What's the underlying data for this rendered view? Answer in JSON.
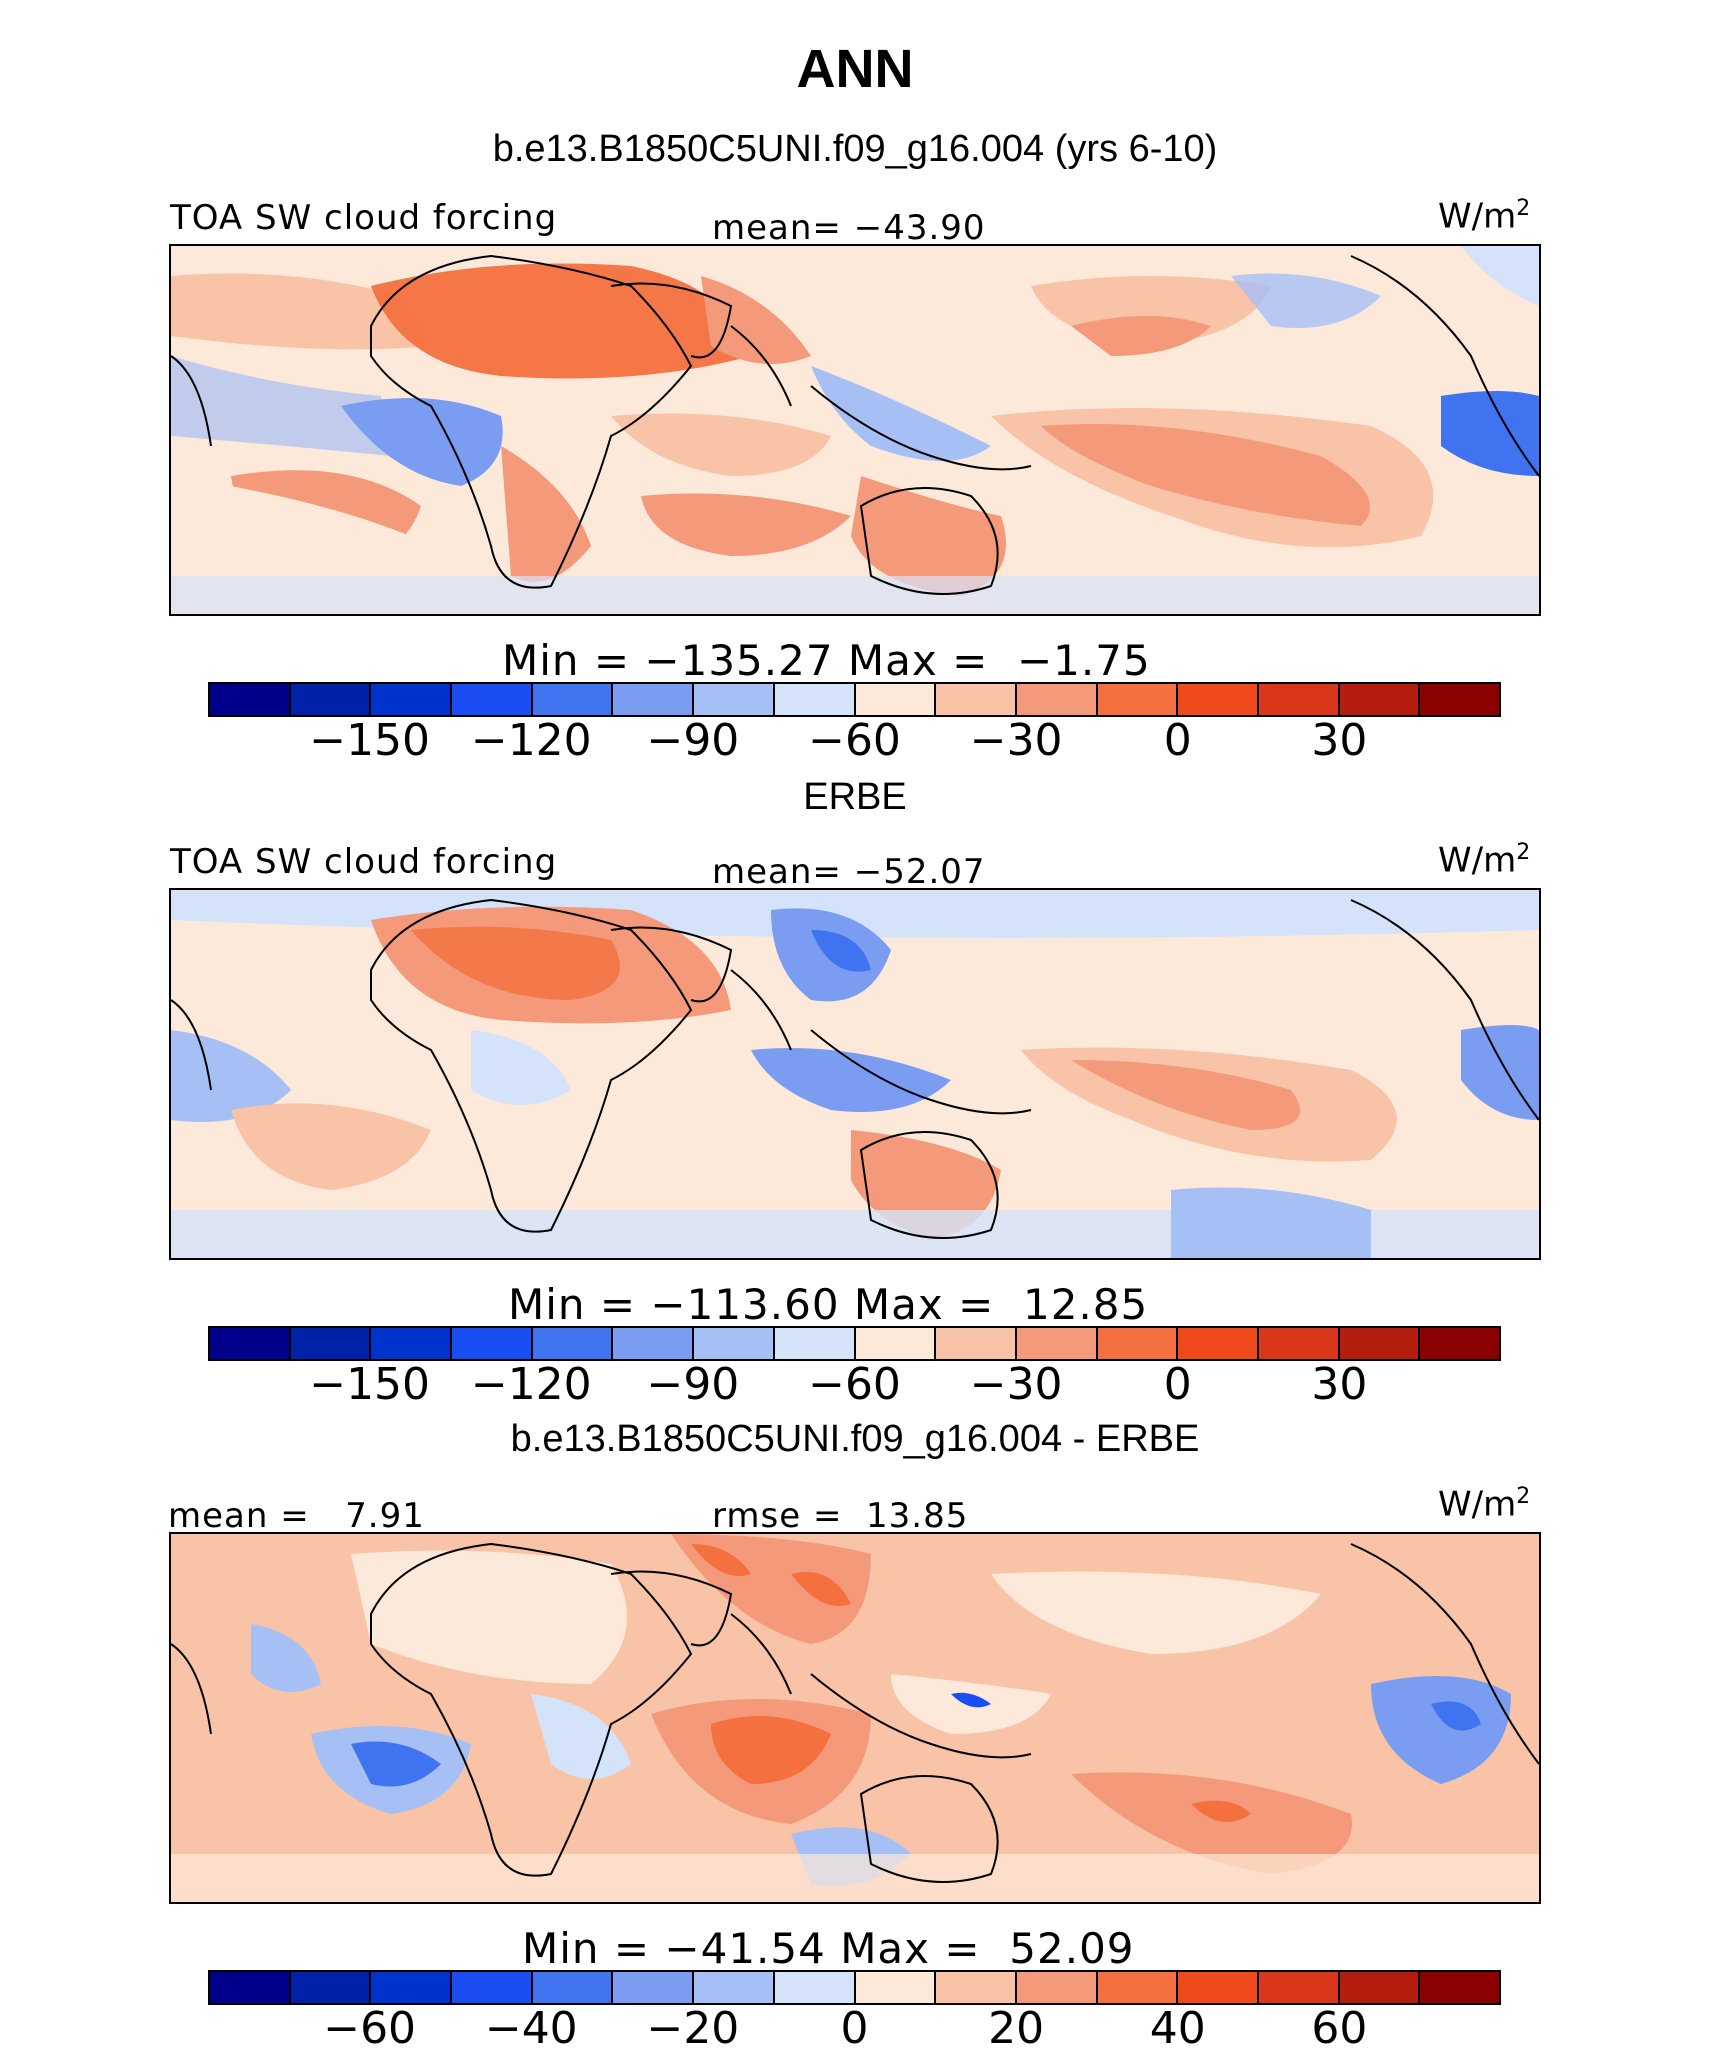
{
  "figure": {
    "season": "ANN",
    "panels": [
      {
        "title": "b.e13.B1850C5UNI.f09_g16.004 (yrs 6-10)",
        "left_label": "TOA SW cloud forcing",
        "center_label": "mean= −43.90",
        "units_base": "W/m",
        "units_exp": "2",
        "minmax": "Min = −135.27 Max =  −1.75",
        "colorbar_ticks": [
          "−150",
          "−120",
          "−90",
          "−60",
          "−30",
          "0",
          "30"
        ]
      },
      {
        "title": "ERBE",
        "left_label": "TOA SW cloud forcing",
        "center_label": "mean= −52.07",
        "units_base": "W/m",
        "units_exp": "2",
        "minmax": "Min = −113.60 Max =  12.85",
        "colorbar_ticks": [
          "−150",
          "−120",
          "−90",
          "−60",
          "−30",
          "0",
          "30"
        ]
      },
      {
        "title": "b.e13.B1850C5UNI.f09_g16.004 - ERBE",
        "left_label": "mean =   7.91",
        "center_label": "rmse =  13.85",
        "units_base": "W/m",
        "units_exp": "2",
        "minmax": "Min = −41.54 Max =  52.09",
        "colorbar_ticks": [
          "−60",
          "−40",
          "−20",
          "0",
          "20",
          "40",
          "60"
        ]
      }
    ],
    "colorbar_colors": [
      "#00008b",
      "#0022a8",
      "#0033cc",
      "#1a4df2",
      "#3f73f0",
      "#7a9df2",
      "#a6bff5",
      "#d5e3fa",
      "#fde9d9",
      "#f9c3a8",
      "#f4997a",
      "#f4713f",
      "#f04a1c",
      "#d9361a",
      "#b31d0d",
      "#8b0000"
    ]
  }
}
